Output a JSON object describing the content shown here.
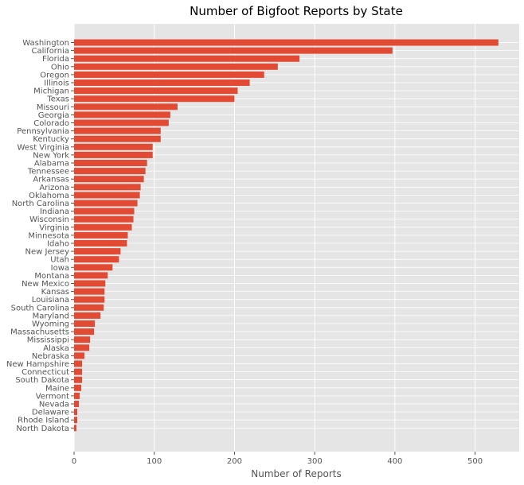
{
  "chart_data": {
    "type": "bar",
    "orientation": "horizontal",
    "title": "Number of Bigfoot Reports by State",
    "xlabel": "Number of Reports",
    "ylabel": "",
    "xlim": [
      0,
      555
    ],
    "xticks": [
      0,
      100,
      200,
      300,
      400,
      500
    ],
    "grid": true,
    "bar_color": "#E24A33",
    "background_color": "#E5E5E5",
    "grid_color": "#FFFFFF",
    "categories": [
      "Washington",
      "California",
      "Florida",
      "Ohio",
      "Oregon",
      "Illinois",
      "Michigan",
      "Texas",
      "Missouri",
      "Georgia",
      "Colorado",
      "Pennsylvania",
      "Kentucky",
      "West Virginia",
      "New York",
      "Alabama",
      "Tennessee",
      "Arkansas",
      "Arizona",
      "Oklahoma",
      "North Carolina",
      "Indiana",
      "Wisconsin",
      "Virginia",
      "Minnesota",
      "Idaho",
      "New Jersey",
      "Utah",
      "Iowa",
      "Montana",
      "New Mexico",
      "Kansas",
      "Louisiana",
      "South Carolina",
      "Maryland",
      "Wyoming",
      "Massachusetts",
      "Mississippi",
      "Alaska",
      "Nebraska",
      "New Hampshire",
      "Connecticut",
      "South Dakota",
      "Maine",
      "Vermont",
      "Nevada",
      "Delaware",
      "Rhode Island",
      "North Dakota"
    ],
    "values": [
      529,
      397,
      281,
      254,
      237,
      219,
      204,
      200,
      129,
      120,
      118,
      108,
      108,
      98,
      98,
      91,
      89,
      87,
      83,
      82,
      79,
      75,
      74,
      72,
      67,
      66,
      58,
      56,
      48,
      42,
      39,
      38,
      38,
      37,
      33,
      26,
      25,
      20,
      19,
      13,
      10,
      10,
      10,
      9,
      7,
      6,
      4,
      4,
      3
    ]
  }
}
